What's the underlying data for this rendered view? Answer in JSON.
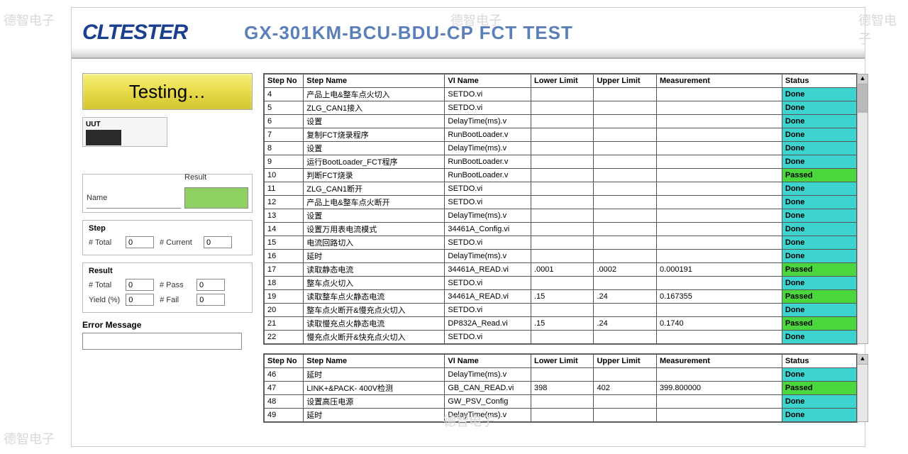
{
  "watermarks": [
    "德智电子",
    "德智电子",
    "德智电子",
    "德智电子",
    "德智电子"
  ],
  "logo_text": "CLTESTER",
  "page_title": "GX-301KM-BCU-BDU-CP FCT TEST",
  "testing_label": "Testing…",
  "uut_label": "UUT",
  "name_label": "Name",
  "result_label": "Result",
  "step_group": {
    "title": "Step",
    "total_label": "# Total",
    "total_value": "0",
    "current_label": "# Current",
    "current_value": "0"
  },
  "result_group": {
    "title": "Result",
    "total_label": "# Total",
    "total_value": "0",
    "pass_label": "# Pass",
    "pass_value": "0",
    "yield_label": "Yield (%)",
    "yield_value": "0",
    "fail_label": "# Fail",
    "fail_value": "0"
  },
  "error_label": "Error Message",
  "columns": {
    "step": "Step No",
    "name": "Step Name",
    "vi": "VI Name",
    "lower": "Lower Limit",
    "upper": "Upper Limit",
    "meas": "Measurement",
    "status": "Status"
  },
  "rows1": [
    {
      "step": "4",
      "name": "产品上电&整车点火切入",
      "vi": "SETDO.vi",
      "lower": "",
      "upper": "",
      "meas": "",
      "status": "Done"
    },
    {
      "step": "5",
      "name": "ZLG_CAN1接入",
      "vi": "SETDO.vi",
      "lower": "",
      "upper": "",
      "meas": "",
      "status": "Done"
    },
    {
      "step": "6",
      "name": "设置",
      "vi": "DelayTime(ms).v",
      "lower": "",
      "upper": "",
      "meas": "",
      "status": "Done"
    },
    {
      "step": "7",
      "name": "复制FCT烧录程序",
      "vi": "RunBootLoader.v",
      "lower": "",
      "upper": "",
      "meas": "",
      "status": "Done"
    },
    {
      "step": "8",
      "name": "设置",
      "vi": "DelayTime(ms).v",
      "lower": "",
      "upper": "",
      "meas": "",
      "status": "Done"
    },
    {
      "step": "9",
      "name": "运行BootLoader_FCT程序",
      "vi": "RunBootLoader.v",
      "lower": "",
      "upper": "",
      "meas": "",
      "status": "Done"
    },
    {
      "step": "10",
      "name": "判断FCT烧录",
      "vi": "RunBootLoader.v",
      "lower": "",
      "upper": "",
      "meas": "",
      "status": "Passed"
    },
    {
      "step": "11",
      "name": "ZLG_CAN1断开",
      "vi": "SETDO.vi",
      "lower": "",
      "upper": "",
      "meas": "",
      "status": "Done"
    },
    {
      "step": "12",
      "name": "产品上电&整车点火断开",
      "vi": "SETDO.vi",
      "lower": "",
      "upper": "",
      "meas": "",
      "status": "Done"
    },
    {
      "step": "13",
      "name": "设置",
      "vi": "DelayTime(ms).v",
      "lower": "",
      "upper": "",
      "meas": "",
      "status": "Done"
    },
    {
      "step": "14",
      "name": "设置万用表电流模式",
      "vi": "34461A_Config.vi",
      "lower": "",
      "upper": "",
      "meas": "",
      "status": "Done"
    },
    {
      "step": "15",
      "name": "电流回路切入",
      "vi": "SETDO.vi",
      "lower": "",
      "upper": "",
      "meas": "",
      "status": "Done"
    },
    {
      "step": "16",
      "name": "延时",
      "vi": "DelayTime(ms).v",
      "lower": "",
      "upper": "",
      "meas": "",
      "status": "Done"
    },
    {
      "step": "17",
      "name": "读取静态电流",
      "vi": "34461A_READ.vi",
      "lower": ".0001",
      "upper": ".0002",
      "meas": "0.000191",
      "status": "Passed"
    },
    {
      "step": "18",
      "name": "整车点火切入",
      "vi": "SETDO.vi",
      "lower": "",
      "upper": "",
      "meas": "",
      "status": "Done"
    },
    {
      "step": "19",
      "name": "读取整车点火静态电流",
      "vi": "34461A_READ.vi",
      "lower": ".15",
      "upper": ".24",
      "meas": "0.167355",
      "status": "Passed"
    },
    {
      "step": "20",
      "name": "整车点火断开&慢充点火切入",
      "vi": "SETDO.vi",
      "lower": "",
      "upper": "",
      "meas": "",
      "status": "Done"
    },
    {
      "step": "21",
      "name": "读取慢充点火静态电流",
      "vi": "DP832A_Read.vi",
      "lower": ".15",
      "upper": ".24",
      "meas": "0.1740",
      "status": "Passed"
    },
    {
      "step": "22",
      "name": "慢充点火断开&快充点火切入",
      "vi": "SETDO.vi",
      "lower": "",
      "upper": "",
      "meas": "",
      "status": "Done"
    }
  ],
  "rows2": [
    {
      "step": "46",
      "name": "延时",
      "vi": "DelayTime(ms).v",
      "lower": "",
      "upper": "",
      "meas": "",
      "status": "Done"
    },
    {
      "step": "47",
      "name": "LINK+&PACK- 400V检测",
      "vi": "GB_CAN_READ.vi",
      "lower": "398",
      "upper": "402",
      "meas": "399.800000",
      "status": "Passed"
    },
    {
      "step": "48",
      "name": "设置高压电源",
      "vi": "GW_PSV_Config",
      "lower": "",
      "upper": "",
      "meas": "",
      "status": "Done"
    },
    {
      "step": "49",
      "name": "延时",
      "vi": "DelayTime(ms).v",
      "lower": "",
      "upper": "",
      "meas": "",
      "status": "Done"
    }
  ],
  "colors": {
    "done_bg": "#3dd4d0",
    "passed_bg": "#4ad63d",
    "testing_bg": "#e8db4a",
    "result_bar": "#8fd062",
    "title_color": "#5b7fb8",
    "logo_color": "#1b3f8f"
  }
}
